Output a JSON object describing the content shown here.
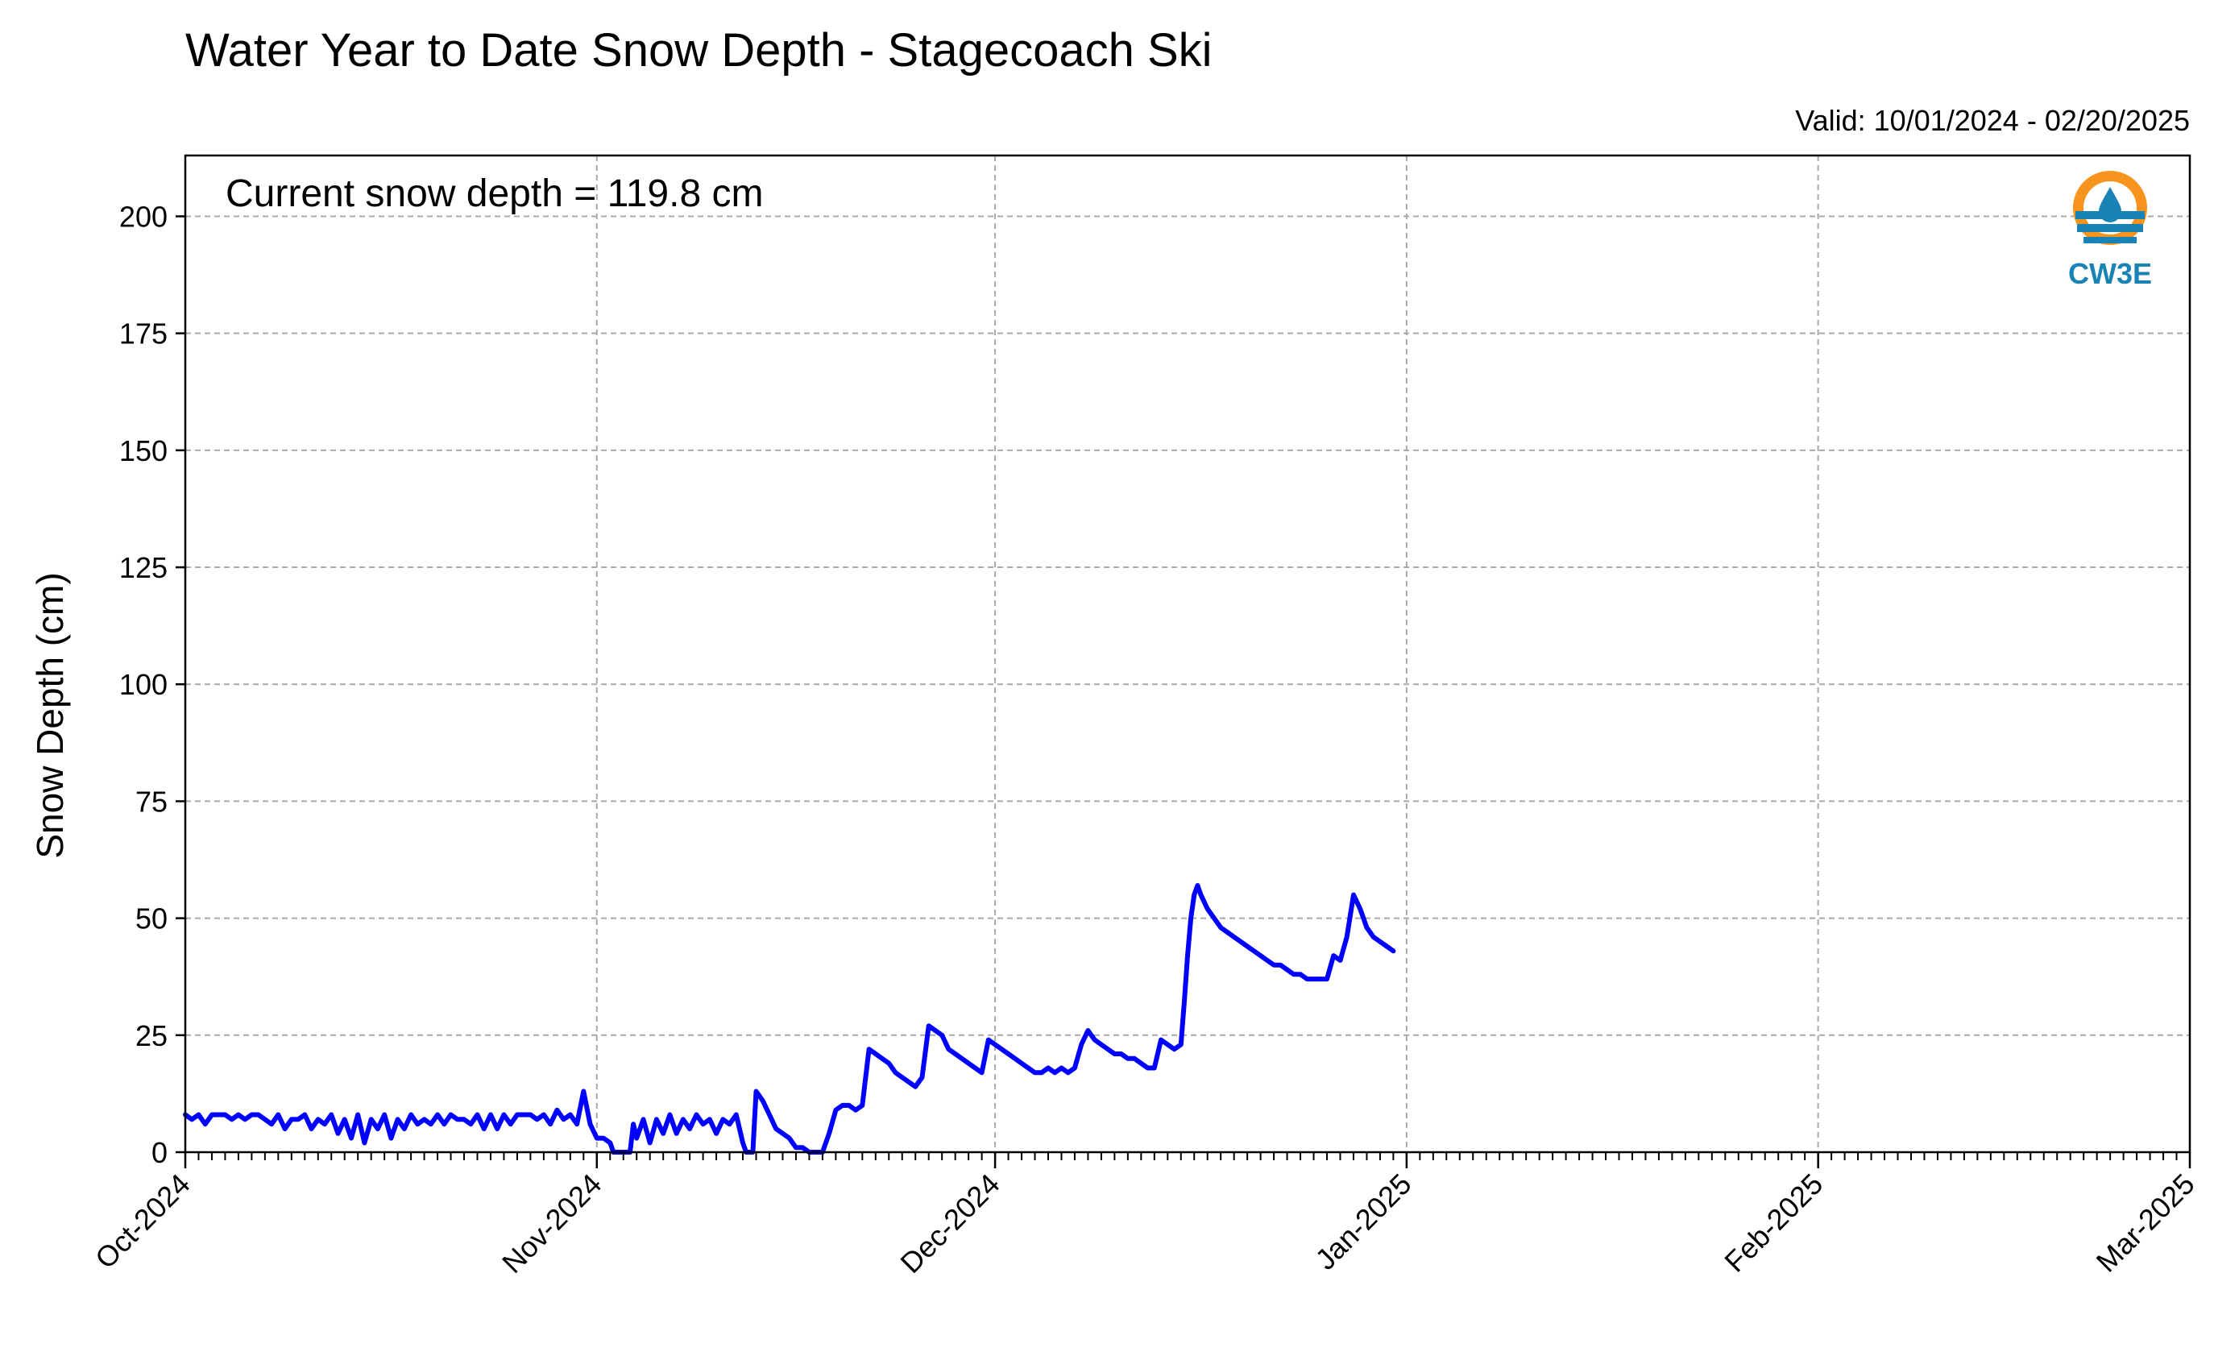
{
  "chart_data": {
    "type": "line",
    "title": "Water Year to Date Snow Depth - Stagecoach Ski",
    "subtitle": "Valid: 10/01/2024 - 02/20/2025",
    "annotation": "Current snow depth = 119.8 cm",
    "logo_text": "CW3E",
    "xlabel": "",
    "ylabel": "Snow Depth (cm)",
    "ylim": [
      0,
      213
    ],
    "xlim": [
      "2024-10-01",
      "2025-03-01"
    ],
    "y_ticks": [
      0,
      25,
      50,
      75,
      100,
      125,
      150,
      175,
      200
    ],
    "x_tick_labels": [
      {
        "date": "2024-10-01",
        "label": "Oct-2024"
      },
      {
        "date": "2024-11-01",
        "label": "Nov-2024"
      },
      {
        "date": "2024-12-01",
        "label": "Dec-2024"
      },
      {
        "date": "2025-01-01",
        "label": "Jan-2025"
      },
      {
        "date": "2025-02-01",
        "label": "Feb-2025"
      },
      {
        "date": "2025-03-01",
        "label": "Mar-2025"
      }
    ],
    "grid": true,
    "line_color": "#0000ff",
    "series": [
      {
        "points": [
          [
            "2024-10-01 00:00",
            8
          ],
          [
            "2024-10-01 12:00",
            7
          ],
          [
            "2024-10-02 00:00",
            8
          ],
          [
            "2024-10-02 12:00",
            6
          ],
          [
            "2024-10-03 00:00",
            8
          ],
          [
            "2024-10-03 12:00",
            8
          ],
          [
            "2024-10-04 00:00",
            8
          ],
          [
            "2024-10-04 12:00",
            7
          ],
          [
            "2024-10-05 00:00",
            8
          ],
          [
            "2024-10-05 12:00",
            7
          ],
          [
            "2024-10-06 00:00",
            8
          ],
          [
            "2024-10-06 12:00",
            8
          ],
          [
            "2024-10-07 00:00",
            7
          ],
          [
            "2024-10-07 12:00",
            6
          ],
          [
            "2024-10-08 00:00",
            8
          ],
          [
            "2024-10-08 12:00",
            5
          ],
          [
            "2024-10-09 00:00",
            7
          ],
          [
            "2024-10-09 12:00",
            7
          ],
          [
            "2024-10-10 00:00",
            8
          ],
          [
            "2024-10-10 12:00",
            5
          ],
          [
            "2024-10-11 00:00",
            7
          ],
          [
            "2024-10-11 12:00",
            6
          ],
          [
            "2024-10-12 00:00",
            8
          ],
          [
            "2024-10-12 12:00",
            4
          ],
          [
            "2024-10-13 00:00",
            7
          ],
          [
            "2024-10-13 12:00",
            3
          ],
          [
            "2024-10-14 00:00",
            8
          ],
          [
            "2024-10-14 12:00",
            2
          ],
          [
            "2024-10-15 00:00",
            7
          ],
          [
            "2024-10-15 12:00",
            5
          ],
          [
            "2024-10-16 00:00",
            8
          ],
          [
            "2024-10-16 12:00",
            3
          ],
          [
            "2024-10-17 00:00",
            7
          ],
          [
            "2024-10-17 12:00",
            5
          ],
          [
            "2024-10-18 00:00",
            8
          ],
          [
            "2024-10-18 12:00",
            6
          ],
          [
            "2024-10-19 00:00",
            7
          ],
          [
            "2024-10-19 12:00",
            6
          ],
          [
            "2024-10-20 00:00",
            8
          ],
          [
            "2024-10-20 12:00",
            6
          ],
          [
            "2024-10-21 00:00",
            8
          ],
          [
            "2024-10-21 12:00",
            7
          ],
          [
            "2024-10-22 00:00",
            7
          ],
          [
            "2024-10-22 12:00",
            6
          ],
          [
            "2024-10-23 00:00",
            8
          ],
          [
            "2024-10-23 12:00",
            5
          ],
          [
            "2024-10-24 00:00",
            8
          ],
          [
            "2024-10-24 12:00",
            5
          ],
          [
            "2024-10-25 00:00",
            8
          ],
          [
            "2024-10-25 12:00",
            6
          ],
          [
            "2024-10-26 00:00",
            8
          ],
          [
            "2024-10-26 12:00",
            8
          ],
          [
            "2024-10-27 00:00",
            8
          ],
          [
            "2024-10-27 12:00",
            7
          ],
          [
            "2024-10-28 00:00",
            8
          ],
          [
            "2024-10-28 12:00",
            6
          ],
          [
            "2024-10-29 00:00",
            9
          ],
          [
            "2024-10-29 12:00",
            7
          ],
          [
            "2024-10-30 00:00",
            8
          ],
          [
            "2024-10-30 12:00",
            6
          ],
          [
            "2024-10-31 00:00",
            13
          ],
          [
            "2024-10-31 12:00",
            6
          ],
          [
            "2024-11-01 00:00",
            3
          ],
          [
            "2024-11-01 12:00",
            3
          ],
          [
            "2024-11-02 00:00",
            2
          ],
          [
            "2024-11-02 06:00",
            0
          ],
          [
            "2024-11-03 12:00",
            0
          ],
          [
            "2024-11-03 18:00",
            6
          ],
          [
            "2024-11-04 00:00",
            3
          ],
          [
            "2024-11-04 12:00",
            7
          ],
          [
            "2024-11-05 00:00",
            2
          ],
          [
            "2024-11-05 12:00",
            7
          ],
          [
            "2024-11-06 00:00",
            4
          ],
          [
            "2024-11-06 12:00",
            8
          ],
          [
            "2024-11-07 00:00",
            4
          ],
          [
            "2024-11-07 12:00",
            7
          ],
          [
            "2024-11-08 00:00",
            5
          ],
          [
            "2024-11-08 12:00",
            8
          ],
          [
            "2024-11-09 00:00",
            6
          ],
          [
            "2024-11-09 12:00",
            7
          ],
          [
            "2024-11-10 00:00",
            4
          ],
          [
            "2024-11-10 12:00",
            7
          ],
          [
            "2024-11-11 00:00",
            6
          ],
          [
            "2024-11-11 12:00",
            8
          ],
          [
            "2024-11-12 00:00",
            2
          ],
          [
            "2024-11-12 06:00",
            0
          ],
          [
            "2024-11-12 18:00",
            0
          ],
          [
            "2024-11-13 00:00",
            13
          ],
          [
            "2024-11-13 12:00",
            11
          ],
          [
            "2024-11-14 00:00",
            8
          ],
          [
            "2024-11-14 12:00",
            5
          ],
          [
            "2024-11-15 00:00",
            4
          ],
          [
            "2024-11-15 12:00",
            3
          ],
          [
            "2024-11-16 00:00",
            1
          ],
          [
            "2024-11-16 12:00",
            1
          ],
          [
            "2024-11-17 00:00",
            0
          ],
          [
            "2024-11-18 00:00",
            0
          ],
          [
            "2024-11-18 12:00",
            4
          ],
          [
            "2024-11-19 00:00",
            9
          ],
          [
            "2024-11-19 12:00",
            10
          ],
          [
            "2024-11-20 00:00",
            10
          ],
          [
            "2024-11-20 12:00",
            9
          ],
          [
            "2024-11-21 00:00",
            10
          ],
          [
            "2024-11-21 12:00",
            22
          ],
          [
            "2024-11-22 00:00",
            21
          ],
          [
            "2024-11-22 12:00",
            20
          ],
          [
            "2024-11-23 00:00",
            19
          ],
          [
            "2024-11-23 12:00",
            17
          ],
          [
            "2024-11-24 00:00",
            16
          ],
          [
            "2024-11-24 12:00",
            15
          ],
          [
            "2024-11-25 00:00",
            14
          ],
          [
            "2024-11-25 12:00",
            16
          ],
          [
            "2024-11-26 00:00",
            27
          ],
          [
            "2024-11-26 12:00",
            26
          ],
          [
            "2024-11-27 00:00",
            25
          ],
          [
            "2024-11-27 12:00",
            22
          ],
          [
            "2024-11-28 00:00",
            21
          ],
          [
            "2024-11-28 12:00",
            20
          ],
          [
            "2024-11-29 00:00",
            19
          ],
          [
            "2024-11-29 12:00",
            18
          ],
          [
            "2024-11-30 00:00",
            17
          ],
          [
            "2024-11-30 12:00",
            24
          ],
          [
            "2024-12-01 00:00",
            23
          ],
          [
            "2024-12-01 12:00",
            22
          ],
          [
            "2024-12-02 00:00",
            21
          ],
          [
            "2024-12-02 12:00",
            20
          ],
          [
            "2024-12-03 00:00",
            19
          ],
          [
            "2024-12-03 12:00",
            18
          ],
          [
            "2024-12-04 00:00",
            17
          ],
          [
            "2024-12-04 12:00",
            17
          ],
          [
            "2024-12-05 00:00",
            18
          ],
          [
            "2024-12-05 12:00",
            17
          ],
          [
            "2024-12-06 00:00",
            18
          ],
          [
            "2024-12-06 12:00",
            17
          ],
          [
            "2024-12-07 00:00",
            18
          ],
          [
            "2024-12-07 12:00",
            23
          ],
          [
            "2024-12-08 00:00",
            26
          ],
          [
            "2024-12-08 12:00",
            24
          ],
          [
            "2024-12-09 00:00",
            23
          ],
          [
            "2024-12-09 12:00",
            22
          ],
          [
            "2024-12-10 00:00",
            21
          ],
          [
            "2024-12-10 12:00",
            21
          ],
          [
            "2024-12-11 00:00",
            20
          ],
          [
            "2024-12-11 12:00",
            20
          ],
          [
            "2024-12-12 00:00",
            19
          ],
          [
            "2024-12-12 12:00",
            18
          ],
          [
            "2024-12-13 00:00",
            18
          ],
          [
            "2024-12-13 12:00",
            24
          ],
          [
            "2024-12-14 00:00",
            23
          ],
          [
            "2024-12-14 12:00",
            22
          ],
          [
            "2024-12-15 00:00",
            23
          ],
          [
            "2024-12-15 06:00",
            32
          ],
          [
            "2024-12-15 12:00",
            42
          ],
          [
            "2024-12-15 18:00",
            50
          ],
          [
            "2024-12-16 00:00",
            55
          ],
          [
            "2024-12-16 06:00",
            57
          ],
          [
            "2024-12-16 12:00",
            55
          ],
          [
            "2024-12-17 00:00",
            52
          ],
          [
            "2024-12-17 12:00",
            50
          ],
          [
            "2024-12-18 00:00",
            48
          ],
          [
            "2024-12-18 12:00",
            47
          ],
          [
            "2024-12-19 00:00",
            46
          ],
          [
            "2024-12-19 12:00",
            45
          ],
          [
            "2024-12-20 00:00",
            44
          ],
          [
            "2024-12-20 12:00",
            43
          ],
          [
            "2024-12-21 00:00",
            42
          ],
          [
            "2024-12-21 12:00",
            41
          ],
          [
            "2024-12-22 00:00",
            40
          ],
          [
            "2024-12-22 12:00",
            40
          ],
          [
            "2024-12-23 00:00",
            39
          ],
          [
            "2024-12-23 12:00",
            38
          ],
          [
            "2024-12-24 00:00",
            38
          ],
          [
            "2024-12-24 12:00",
            37
          ],
          [
            "2024-12-25 00:00",
            37
          ],
          [
            "2024-12-25 12:00",
            37
          ],
          [
            "2024-12-26 00:00",
            37
          ],
          [
            "2024-12-26 12:00",
            42
          ],
          [
            "2024-12-27 00:00",
            41
          ],
          [
            "2024-12-27 12:00",
            46
          ],
          [
            "2024-12-28 00:00",
            55
          ],
          [
            "2024-12-28 12:00",
            52
          ],
          [
            "2024-12-29 00:00",
            48
          ],
          [
            "2024-12-29 12:00",
            46
          ],
          [
            "2024-12-30 00:00",
            45
          ],
          [
            "2024-12-30 12:00",
            44
          ],
          [
            "2024-12-31 00:00",
            43
          ]
        ]
      }
    ]
  }
}
